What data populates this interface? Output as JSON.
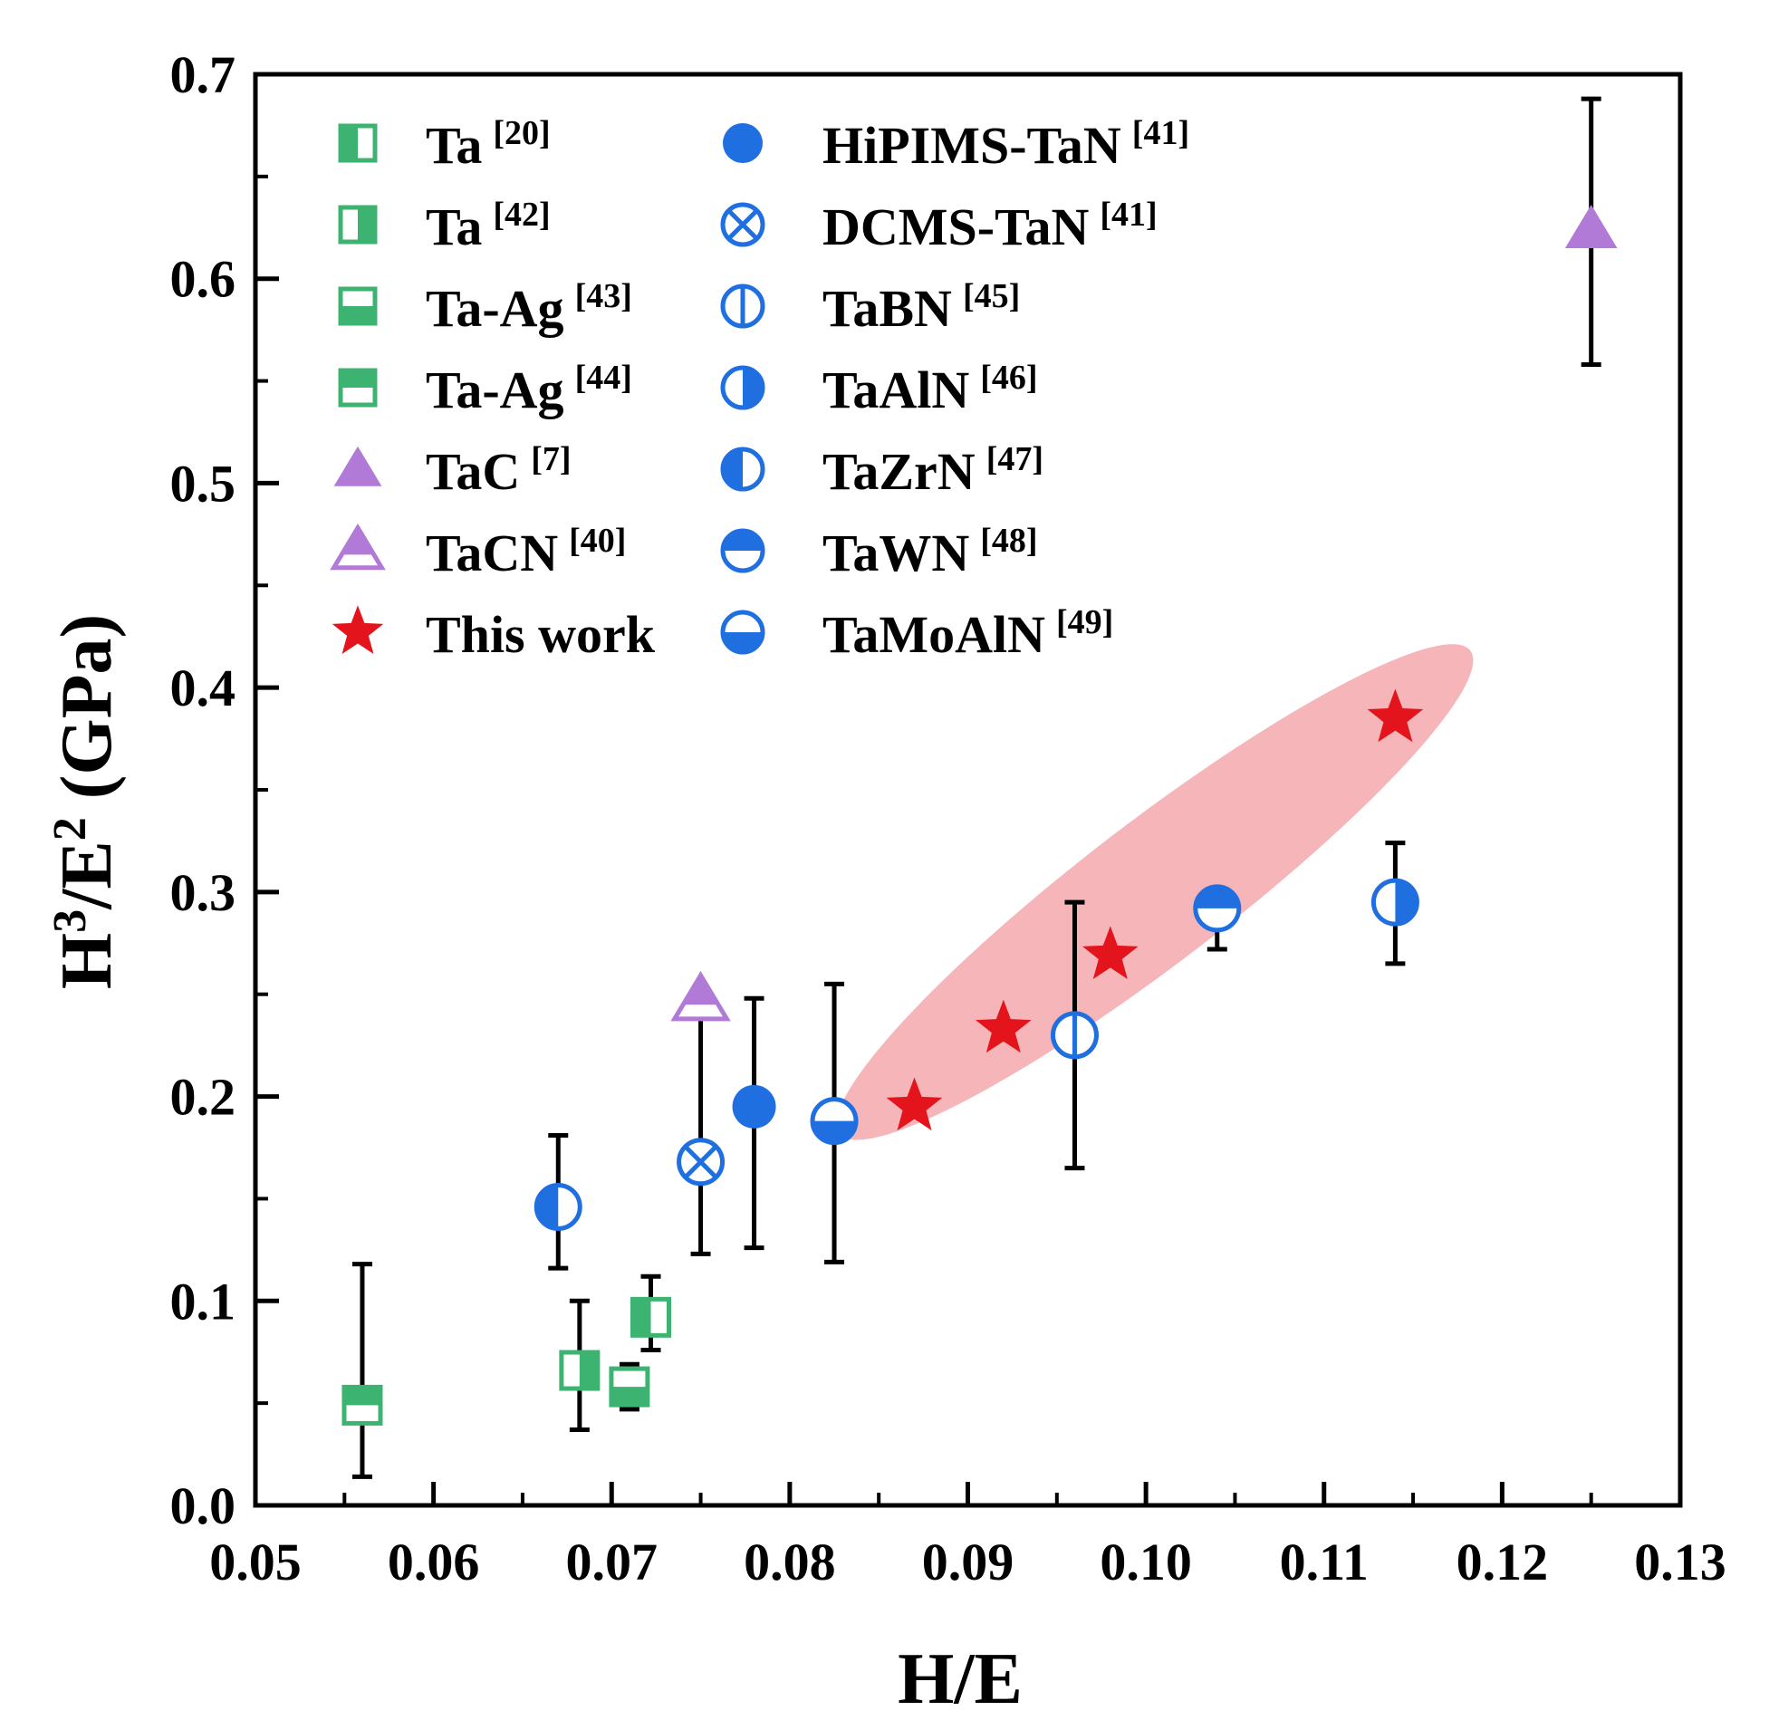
{
  "chart_data": {
    "type": "scatter",
    "title": "",
    "xlabel": "H/E",
    "ylabel_main": "H",
    "ylabel_sup1": "3",
    "ylabel_mid": "/E",
    "ylabel_sup2": "2",
    "ylabel_end": " (GPa)",
    "xlim": [
      0.05,
      0.13
    ],
    "ylim": [
      0.0,
      0.7
    ],
    "xticks": [
      "0.05",
      "0.06",
      "0.07",
      "0.08",
      "0.09",
      "0.10",
      "0.11",
      "0.12",
      "0.13"
    ],
    "yticks": [
      "0.0",
      "0.1",
      "0.2",
      "0.3",
      "0.4",
      "0.5",
      "0.6",
      "0.7"
    ],
    "grid": false,
    "legend_position": "top-left",
    "highlight_region": {
      "shape": "ellipse",
      "from": [
        0.084,
        0.19
      ],
      "to": [
        0.117,
        0.41
      ],
      "color": "#f4a3a8"
    },
    "colors": {
      "green": "#3cb371",
      "blue": "#1f6fe0",
      "purple": "#b07ad6",
      "red": "#e3141b"
    },
    "series": [
      {
        "name": "Ta",
        "ref": "[20]",
        "marker": "square-half-left",
        "color": "#3cb371",
        "points": [
          {
            "x": 0.0722,
            "y": 0.092,
            "err": [
              0.076,
              0.112
            ]
          }
        ]
      },
      {
        "name": "Ta",
        "ref": "[42]",
        "marker": "square-half-right",
        "color": "#3cb371",
        "points": [
          {
            "x": 0.0682,
            "y": 0.066,
            "err": [
              0.037,
              0.1
            ]
          }
        ]
      },
      {
        "name": "Ta-Ag",
        "ref": "[43]",
        "marker": "square-half-bottom",
        "color": "#3cb371",
        "points": [
          {
            "x": 0.071,
            "y": 0.058,
            "err": [
              0.047,
              0.069
            ]
          }
        ]
      },
      {
        "name": "Ta-Ag",
        "ref": "[44]",
        "marker": "square-half-top",
        "color": "#3cb371",
        "points": [
          {
            "x": 0.056,
            "y": 0.049,
            "err": [
              0.014,
              0.118
            ]
          }
        ]
      },
      {
        "name": "TaC",
        "ref": "[7]",
        "marker": "triangle-filled",
        "color": "#b07ad6",
        "points": [
          {
            "x": 0.125,
            "y": 0.624,
            "err": [
              0.558,
              0.688
            ]
          }
        ]
      },
      {
        "name": "TaCN",
        "ref": "[40]",
        "marker": "triangle-half-top",
        "color": "#b07ad6",
        "points": [
          {
            "x": 0.075,
            "y": 0.247
          }
        ]
      },
      {
        "name": "This work",
        "ref": "",
        "marker": "star",
        "color": "#e3141b",
        "points": [
          {
            "x": 0.087,
            "y": 0.195
          },
          {
            "x": 0.092,
            "y": 0.233
          },
          {
            "x": 0.098,
            "y": 0.269
          },
          {
            "x": 0.114,
            "y": 0.385
          }
        ]
      },
      {
        "name": "HiPIMS-TaN",
        "ref": "[41]",
        "marker": "circle-filled",
        "color": "#1f6fe0",
        "points": [
          {
            "x": 0.078,
            "y": 0.195,
            "err": [
              0.126,
              0.248
            ]
          }
        ]
      },
      {
        "name": "DCMS-TaN",
        "ref": "[41]",
        "marker": "circle-x",
        "color": "#1f6fe0",
        "points": [
          {
            "x": 0.075,
            "y": 0.168,
            "err": [
              0.123,
              0.247
            ]
          }
        ]
      },
      {
        "name": "TaBN",
        "ref": "[45]",
        "marker": "circle-vline",
        "color": "#1f6fe0",
        "points": [
          {
            "x": 0.096,
            "y": 0.23,
            "err": [
              0.165,
              0.295
            ]
          }
        ]
      },
      {
        "name": "TaAlN",
        "ref": "[46]",
        "marker": "circle-half-right",
        "color": "#1f6fe0",
        "points": [
          {
            "x": 0.114,
            "y": 0.295,
            "err": [
              0.265,
              0.324
            ]
          }
        ]
      },
      {
        "name": "TaZrN",
        "ref": "[47]",
        "marker": "circle-half-left",
        "color": "#1f6fe0",
        "points": [
          {
            "x": 0.067,
            "y": 0.146,
            "err": [
              0.116,
              0.181
            ]
          }
        ]
      },
      {
        "name": "TaWN",
        "ref": "[48]",
        "marker": "circle-half-top",
        "color": "#1f6fe0",
        "points": [
          {
            "x": 0.104,
            "y": 0.292,
            "err": [
              0.272,
              0.3
            ]
          }
        ]
      },
      {
        "name": "TaMoAlN",
        "ref": "[49]",
        "marker": "circle-half-bottom",
        "color": "#1f6fe0",
        "points": [
          {
            "x": 0.0825,
            "y": 0.188,
            "err": [
              0.119,
              0.255
            ]
          }
        ]
      }
    ],
    "legend_columns": [
      [
        "Ta [20]",
        "Ta [42]",
        "Ta-Ag [43]",
        "Ta-Ag [44]",
        "TaC [7]",
        "TaCN [40]",
        "This work"
      ],
      [
        "HiPIMS-TaN [41]",
        "DCMS-TaN [41]",
        "TaBN [45]",
        "TaAlN [46]",
        "TaZrN [47]",
        "TaWN [48]",
        "TaMoAlN [49]"
      ]
    ]
  }
}
